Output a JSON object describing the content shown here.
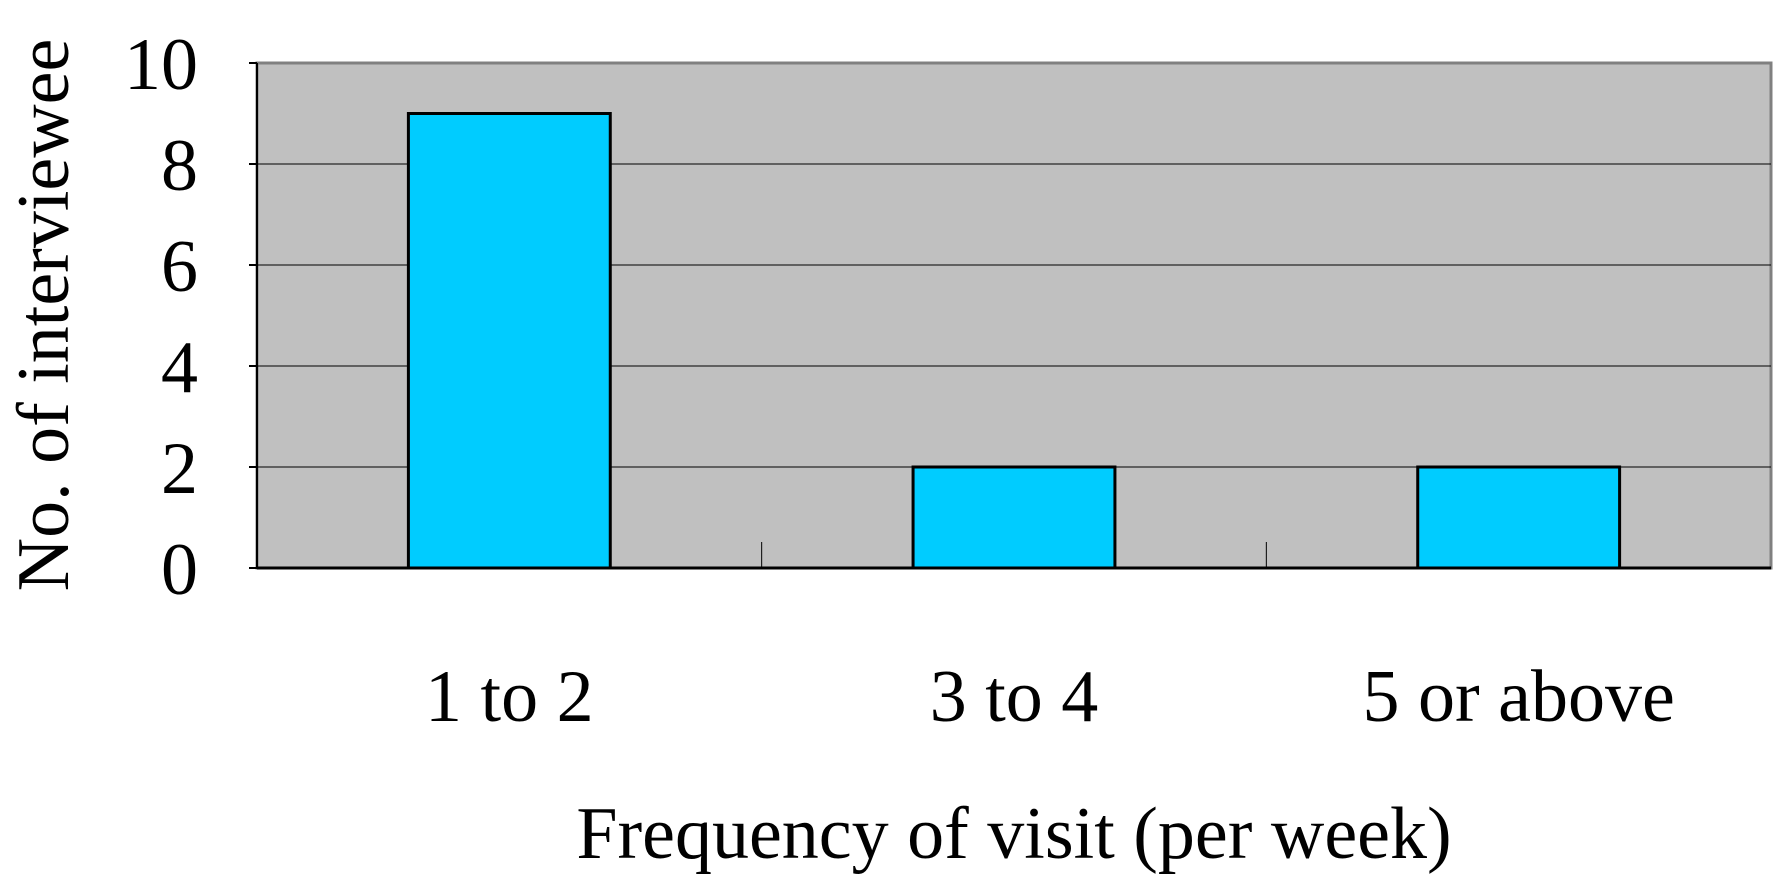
{
  "chart_data": {
    "type": "bar",
    "categories": [
      "1 to 2",
      "3 to 4",
      "5 or above"
    ],
    "values": [
      9,
      2,
      2
    ],
    "title": "",
    "xlabel": "Frequency of visit (per week)",
    "ylabel": "No. of interviewee",
    "ylim": [
      0,
      10
    ],
    "yticks": [
      0,
      2,
      4,
      6,
      8,
      10
    ],
    "grid": true,
    "legend": "none",
    "colors": {
      "bar": "#00CCFF",
      "plot_background": "#C0C0C0",
      "gridline": "#000000",
      "bar_outline": "#000000"
    }
  }
}
